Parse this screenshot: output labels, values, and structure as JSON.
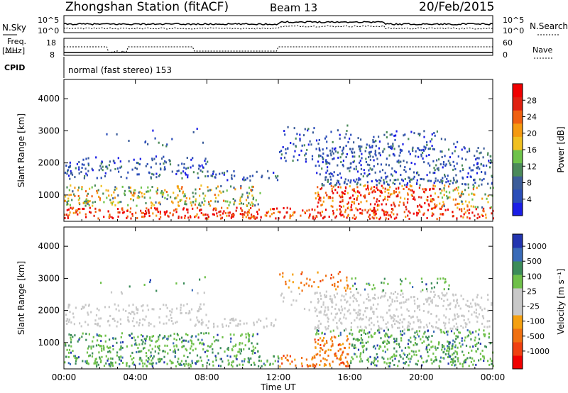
{
  "header": {
    "station": "Zhongshan Station (fitACF)",
    "beam": "Beam 13",
    "date": "20/Feb/2015"
  },
  "top_panels": {
    "nsky": {
      "label": "N.Sky",
      "ticks": [
        "10^5",
        "10^0"
      ]
    },
    "nsearch": {
      "label": "N.Search",
      "ticks": [
        "10^5",
        "10^0"
      ]
    },
    "freq": {
      "label_line1": "Freq.",
      "label_line2": "[MHz]",
      "ticks": [
        "18",
        "8"
      ]
    },
    "nave": {
      "label": "Nave",
      "ticks": [
        "60",
        "0"
      ]
    },
    "cpid": {
      "label": "CPID",
      "value": "normal (fast stereo) 153"
    }
  },
  "colors": {
    "power": [
      "#1b1ee6",
      "#2a4db8",
      "#3c5d9a",
      "#4b8a5a",
      "#6ec34a",
      "#f0c020",
      "#f59a10",
      "#f06010",
      "#e02010",
      "#f00000"
    ],
    "velocity": [
      "#2335b0",
      "#3a6bb8",
      "#3c8c5a",
      "#6fc04a",
      "#c8c8c8",
      "#c8c8c8",
      "#f5a010",
      "#f07010",
      "#f04010",
      "#f00000"
    ]
  },
  "chart_data": [
    {
      "type": "heatmap",
      "name": "power",
      "xlabel": "",
      "ylabel": "Slant Range [km]",
      "x_ticks": [
        "00:00",
        "04:00",
        "08:00",
        "12:00",
        "16:00",
        "20:00",
        "00:00"
      ],
      "y_ticks": [
        1000,
        2000,
        3000,
        4000
      ],
      "ylim": [
        180,
        4600
      ],
      "colorbar": {
        "title": "Power [dB]",
        "ticks": [
          4,
          8,
          12,
          16,
          20,
          24,
          28
        ]
      }
    },
    {
      "type": "heatmap",
      "name": "velocity",
      "xlabel": "Time UT",
      "ylabel": "Slant Range [km]",
      "x_ticks": [
        "00:00",
        "04:00",
        "08:00",
        "12:00",
        "16:00",
        "20:00",
        "00:00"
      ],
      "y_ticks": [
        1000,
        2000,
        3000,
        4000
      ],
      "ylim": [
        180,
        4600
      ],
      "colorbar": {
        "title": "Velocity [m s⁻¹]",
        "ticks": [
          "1000",
          "500",
          "100",
          "25",
          "-25",
          "-100",
          "-500",
          "-1000"
        ]
      }
    }
  ]
}
